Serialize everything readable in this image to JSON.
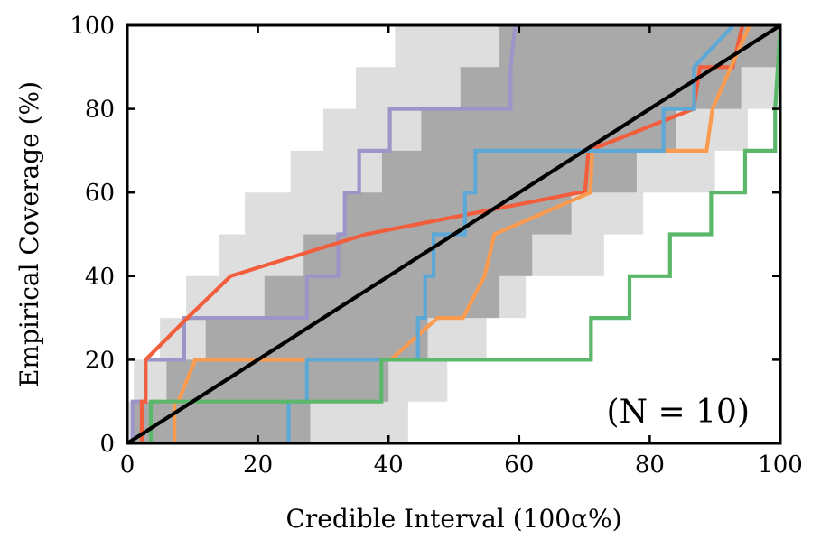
{
  "chart_data": {
    "type": "line",
    "xlabel": "Credible Interval (100α%)",
    "ylabel": "Empirical Coverage (%)",
    "xlim": [
      0,
      100
    ],
    "ylim": [
      0,
      100
    ],
    "x_ticks": [
      "0",
      "20",
      "40",
      "60",
      "80",
      "100"
    ],
    "y_ticks": [
      "0",
      "20",
      "40",
      "60",
      "80",
      "100"
    ],
    "annotation": "(N = 10)",
    "grid": false,
    "legend": "none",
    "reference_line": {
      "x": [
        0,
        100
      ],
      "y": [
        0,
        100
      ],
      "color": "#000000"
    },
    "bands": [
      {
        "level": "outer",
        "color": "#dedede",
        "lower": {
          "x": [
            0,
            4,
            4,
            8,
            8,
            13,
            13,
            18,
            18,
            24,
            24,
            30,
            30,
            36,
            36,
            43,
            43,
            49,
            49,
            55,
            55,
            61,
            61,
            67,
            67,
            73,
            73,
            79,
            79,
            85,
            85,
            90,
            90,
            95,
            95,
            100
          ],
          "y": [
            0,
            0,
            0,
            0,
            0,
            0,
            0,
            0,
            0,
            0,
            0,
            0,
            0,
            0,
            0,
            0,
            10,
            10,
            20,
            20,
            30,
            30,
            40,
            40,
            40,
            40,
            50,
            50,
            60,
            60,
            60,
            60,
            70,
            70,
            80,
            80
          ]
        },
        "upper": {
          "x": [
            0,
            1,
            1,
            5,
            5,
            9,
            9,
            14,
            14,
            18,
            18,
            25,
            25,
            30,
            30,
            35,
            35,
            41,
            41,
            48,
            48,
            100
          ],
          "y": [
            10,
            10,
            20,
            20,
            30,
            30,
            40,
            40,
            50,
            50,
            60,
            60,
            70,
            70,
            80,
            80,
            90,
            90,
            100,
            100,
            100,
            100
          ]
        }
      },
      {
        "level": "inner",
        "color": "#a9a9a9",
        "lower": {
          "x": [
            0,
            10,
            10,
            16,
            16,
            22,
            22,
            28,
            28,
            34,
            34,
            40,
            40,
            46,
            46,
            51,
            51,
            57,
            57,
            62,
            62,
            68,
            68,
            73,
            73,
            78,
            78,
            84,
            84,
            89,
            89,
            94,
            94,
            100
          ],
          "y": [
            0,
            0,
            0,
            0,
            0,
            0,
            0,
            0,
            10,
            10,
            10,
            10,
            20,
            20,
            30,
            30,
            30,
            30,
            40,
            40,
            50,
            50,
            60,
            60,
            60,
            60,
            70,
            70,
            80,
            80,
            80,
            80,
            90,
            90
          ]
        },
        "upper": {
          "x": [
            0,
            1,
            1,
            6,
            6,
            12,
            12,
            17,
            17,
            21,
            21,
            27,
            27,
            33,
            33,
            39,
            39,
            45,
            45,
            51,
            51,
            57,
            57,
            64,
            64,
            100
          ],
          "y": [
            0,
            0,
            10,
            10,
            20,
            20,
            30,
            30,
            30,
            30,
            40,
            40,
            50,
            50,
            60,
            60,
            70,
            70,
            80,
            80,
            90,
            90,
            100,
            100,
            100,
            100
          ]
        }
      }
    ],
    "series": [
      {
        "color": "#9c95c8",
        "x": [
          0,
          0.8,
          0.8,
          2.8,
          2.8,
          8.7,
          8.7,
          26.8,
          26.8,
          27.5,
          27.5,
          32.3,
          32.3,
          33.3,
          33.3,
          35.5,
          35.5,
          39.4,
          39.4,
          40.2,
          40.2,
          40.8,
          40.8,
          58.7,
          58.7,
          59.4
        ],
        "y": [
          0,
          0,
          10,
          10,
          20,
          20,
          30,
          30,
          30,
          30,
          40,
          40,
          50,
          50,
          60,
          60,
          70,
          70,
          70,
          70,
          80,
          80,
          80,
          80,
          90,
          100
        ]
      },
      {
        "color": "#f25d3b",
        "x": [
          0,
          2.2,
          2.2,
          2.8,
          2.8,
          9.2,
          9.2,
          15.8,
          15.8,
          36.5,
          36.5,
          69.2,
          69.2,
          70.1,
          70.1,
          70.6,
          70.6,
          86.7,
          86.7,
          87.7,
          87.7,
          92.7,
          92.7,
          94.2
        ],
        "y": [
          0,
          0,
          10,
          10,
          20,
          30,
          30,
          40,
          40,
          50,
          50,
          60,
          60,
          60,
          60,
          70,
          70,
          80,
          80,
          90,
          90,
          90,
          90,
          100
        ]
      },
      {
        "color": "#fb9b4f",
        "x": [
          0,
          7.2,
          7.2,
          7.8,
          7.8,
          10.4,
          10.4,
          40.3,
          40.3,
          47.5,
          47.5,
          51.4,
          51.4,
          54.7,
          54.7,
          56.2,
          56.2,
          70.9,
          70.9,
          71.2,
          71.2,
          88.7,
          88.7,
          89.6,
          89.6,
          95.3
        ],
        "y": [
          0,
          0,
          10,
          10,
          10,
          20,
          20,
          20,
          20,
          30,
          30,
          30,
          30,
          40,
          40,
          50,
          50,
          60,
          60,
          70,
          70,
          70,
          70,
          80,
          80,
          100
        ]
      },
      {
        "color": "#5ca8d6",
        "x": [
          0,
          24.7,
          24.7,
          27.5,
          27.5,
          28.2,
          28.2,
          44.5,
          44.5,
          45.6,
          45.6,
          46.9,
          46.9,
          48.3,
          48.3,
          51.7,
          51.7,
          53.3,
          53.3,
          56.1,
          56.1,
          82.1,
          82.1,
          84.7,
          84.7,
          86.8,
          86.8,
          92.8
        ],
        "y": [
          0,
          0,
          10,
          10,
          20,
          20,
          20,
          20,
          30,
          30,
          40,
          40,
          50,
          50,
          50,
          50,
          60,
          60,
          70,
          70,
          70,
          70,
          80,
          80,
          80,
          80,
          90,
          100
        ]
      },
      {
        "color": "#5bb76a",
        "x": [
          0,
          2.5,
          2.5,
          3.6,
          3.6,
          38.9,
          38.9,
          39.5,
          39.5,
          71.0,
          71.0,
          76.9,
          76.9,
          83.1,
          83.1,
          89.4,
          89.4,
          94.6,
          94.6,
          99.2,
          99.2,
          100
        ],
        "y": [
          0,
          0,
          0,
          0,
          10,
          10,
          20,
          20,
          20,
          20,
          30,
          30,
          40,
          40,
          50,
          50,
          60,
          60,
          70,
          70,
          80,
          100
        ]
      }
    ]
  }
}
